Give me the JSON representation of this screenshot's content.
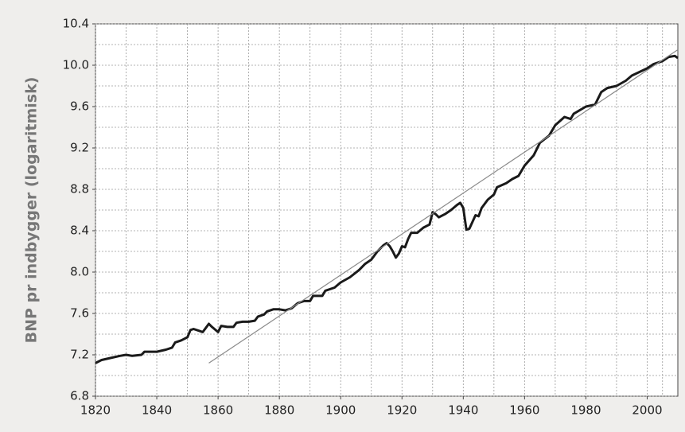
{
  "chart_data": {
    "type": "line",
    "ylabel": "BNP pr indbygger (logaritmisk)",
    "xlim": [
      1820,
      2010
    ],
    "xticks": [
      1820,
      1840,
      1860,
      1880,
      1900,
      1920,
      1940,
      1960,
      1980,
      2000
    ],
    "ylim": [
      6.8,
      10.4
    ],
    "yticks": [
      6.8,
      7.2,
      7.6,
      {
        "value": 8.0,
        "label": "8.0"
      },
      8.4,
      8.8,
      9.2,
      9.6,
      {
        "value": 10.0,
        "label": "10.0"
      },
      10.4
    ],
    "grid": true,
    "series": [
      {
        "color": "#1a1a1a",
        "x": [
          1820,
          1822,
          1825,
          1828,
          1830,
          1832,
          1835,
          1836,
          1840,
          1843,
          1845,
          1846,
          1848,
          1850,
          1851,
          1852,
          1854,
          1855,
          1856,
          1857,
          1858,
          1860,
          1861,
          1863,
          1865,
          1866,
          1868,
          1870,
          1872,
          1873,
          1875,
          1876,
          1878,
          1880,
          1882,
          1884,
          1886,
          1888,
          1890,
          1891,
          1894,
          1895,
          1898,
          1900,
          1903,
          1906,
          1908,
          1910,
          1912,
          1914,
          1915,
          1916,
          1917,
          1918,
          1919,
          1920,
          1921,
          1922,
          1923,
          1925,
          1927,
          1929,
          1930,
          1931,
          1932,
          1934,
          1936,
          1938,
          1939,
          1940,
          1941,
          1942,
          1944,
          1945,
          1946,
          1948,
          1950,
          1951,
          1954,
          1956,
          1958,
          1960,
          1963,
          1965,
          1968,
          1970,
          1973,
          1975,
          1976,
          1980,
          1983,
          1985,
          1987,
          1990,
          1993,
          1995,
          2000,
          2002,
          2005,
          2007,
          2009,
          2010
        ],
        "values": [
          7.12,
          7.15,
          7.17,
          7.19,
          7.2,
          7.19,
          7.2,
          7.23,
          7.23,
          7.25,
          7.27,
          7.32,
          7.34,
          7.37,
          7.44,
          7.45,
          7.43,
          7.42,
          7.46,
          7.5,
          7.47,
          7.42,
          7.48,
          7.47,
          7.47,
          7.51,
          7.52,
          7.52,
          7.53,
          7.57,
          7.59,
          7.62,
          7.64,
          7.64,
          7.63,
          7.65,
          7.7,
          7.72,
          7.72,
          7.77,
          7.77,
          7.82,
          7.85,
          7.9,
          7.95,
          8.02,
          8.08,
          8.12,
          8.2,
          8.26,
          8.28,
          8.25,
          8.2,
          8.14,
          8.18,
          8.25,
          8.24,
          8.32,
          8.38,
          8.38,
          8.43,
          8.46,
          8.58,
          8.56,
          8.53,
          8.56,
          8.6,
          8.65,
          8.67,
          8.62,
          8.41,
          8.42,
          8.55,
          8.54,
          8.62,
          8.7,
          8.75,
          8.82,
          8.86,
          8.9,
          8.93,
          9.03,
          9.13,
          9.25,
          9.32,
          9.42,
          9.5,
          9.48,
          9.53,
          9.6,
          9.62,
          9.74,
          9.78,
          9.8,
          9.85,
          9.9,
          9.97,
          10.01,
          10.04,
          10.08,
          10.09,
          10.07
        ]
      },
      {
        "color": "#8a8a8a",
        "x": [
          1857,
          2010
        ],
        "values": [
          7.12,
          10.15
        ]
      }
    ]
  }
}
